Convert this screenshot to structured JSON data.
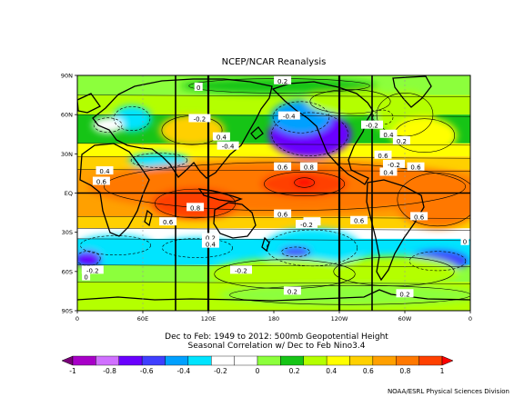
{
  "chart_data": {
    "type": "heatmap",
    "title": "NCEP/NCAR Reanalysis",
    "caption_line1": "Dec to Feb: 1949 to 2012: 500mb Geopotential Height",
    "caption_line2": "Seasonal Correlation w/ Dec to Feb Nino3.4",
    "credit": "NOAA/ESRL Physical Sciences Division",
    "y_ticks": [
      "90N",
      "60N",
      "30N",
      "EQ",
      "30S",
      "60S",
      "90S"
    ],
    "x_ticks": [
      "0",
      "60E",
      "120E",
      "180",
      "120W",
      "60W",
      "0"
    ],
    "colorbar_ticks": [
      "-1",
      "-0.8",
      "-0.6",
      "-0.4",
      "-0.2",
      "0",
      "0.2",
      "0.4",
      "0.6",
      "0.8",
      "1"
    ],
    "colorbar_colors": [
      "#7a007a",
      "#a800c8",
      "#d070ff",
      "#6a00ff",
      "#3f3fff",
      "#00a0ff",
      "#00e4ff",
      "#ffffff",
      "#ffffff",
      "#8cff3c",
      "#16c416",
      "#b4ff00",
      "#ffff00",
      "#ffd000",
      "#ffa000",
      "#ff7800",
      "#ff4000",
      "#ff0000"
    ],
    "contour_labels": [
      {
        "text": "0.2",
        "lon": 188,
        "lat": 86
      },
      {
        "text": "-0.2",
        "lon": 112,
        "lat": 57
      },
      {
        "text": "0.4",
        "lon": 132,
        "lat": 43
      },
      {
        "text": "-0.4",
        "lon": 138,
        "lat": 36
      },
      {
        "text": "-0.4",
        "lon": 194,
        "lat": 59
      },
      {
        "text": "-0.2",
        "lon": 270,
        "lat": 52
      },
      {
        "text": "0.4",
        "lon": 285,
        "lat": 45
      },
      {
        "text": "0.2",
        "lon": 297,
        "lat": 40
      },
      {
        "text": "0.6",
        "lon": 280,
        "lat": 29
      },
      {
        "text": "0.6",
        "lon": 310,
        "lat": 20
      },
      {
        "text": "0.4",
        "lon": 25,
        "lat": 17
      },
      {
        "text": "0.6",
        "lon": 22,
        "lat": 9
      },
      {
        "text": "0.6",
        "lon": 188,
        "lat": 20
      },
      {
        "text": "0.8",
        "lon": 212,
        "lat": 20
      },
      {
        "text": "-0.2",
        "lon": 290,
        "lat": 22
      },
      {
        "text": "0.4",
        "lon": 285,
        "lat": 16
      },
      {
        "text": "0.8",
        "lon": 108,
        "lat": -11
      },
      {
        "text": "0.6",
        "lon": 83,
        "lat": -22
      },
      {
        "text": "0.6",
        "lon": 188,
        "lat": -16
      },
      {
        "text": "0.2",
        "lon": 215,
        "lat": -22
      },
      {
        "text": "-0.2",
        "lon": 210,
        "lat": -24
      },
      {
        "text": "0.6",
        "lon": 258,
        "lat": -21
      },
      {
        "text": "0.6",
        "lon": 313,
        "lat": -18
      },
      {
        "text": "0.2",
        "lon": 122,
        "lat": -34
      },
      {
        "text": "0.4",
        "lon": 122,
        "lat": -39
      },
      {
        "text": "-0.2",
        "lon": 14,
        "lat": -59
      },
      {
        "text": "0",
        "lon": 8,
        "lat": -64
      },
      {
        "text": "0",
        "lon": 355,
        "lat": -37
      },
      {
        "text": "-0.2",
        "lon": 150,
        "lat": -59
      },
      {
        "text": "0.2",
        "lon": 197,
        "lat": -75
      },
      {
        "text": "0.2",
        "lon": 300,
        "lat": -77
      },
      {
        "text": "0",
        "lon": 111,
        "lat": 81
      }
    ],
    "fields": [
      {
        "value": -0.6,
        "lon": 213,
        "lat": 45,
        "rlon": 38,
        "rlat": 18
      },
      {
        "value": -0.4,
        "lon": 205,
        "lat": 58,
        "rlon": 28,
        "rlat": 13
      },
      {
        "value": -0.3,
        "lon": 50,
        "lat": 57,
        "rlon": 18,
        "rlat": 10
      },
      {
        "value": -0.2,
        "lon": 28,
        "lat": 52,
        "rlon": 14,
        "rlat": 6
      },
      {
        "value": -0.3,
        "lon": 280,
        "lat": 58,
        "rlon": 10,
        "rlat": 6
      },
      {
        "value": 0.5,
        "lon": 105,
        "lat": 48,
        "rlon": 30,
        "rlat": 12
      },
      {
        "value": 0.3,
        "lon": 300,
        "lat": 60,
        "rlon": 28,
        "rlat": 18
      },
      {
        "value": 0.4,
        "lon": 318,
        "lat": 44,
        "rlon": 30,
        "rlat": 14
      },
      {
        "value": 0.3,
        "lon": 250,
        "lat": 70,
        "rlon": 40,
        "rlat": 10
      },
      {
        "value": 0.2,
        "lon": 185,
        "lat": 82,
        "rlon": 90,
        "rlat": 6
      },
      {
        "value": -0.3,
        "lon": 75,
        "lat": 25,
        "rlon": 28,
        "rlat": 6
      },
      {
        "value": 0.7,
        "lon": 190,
        "lat": 5,
        "rlon": 180,
        "rlat": 20
      },
      {
        "value": 0.85,
        "lon": 208,
        "lat": 7,
        "rlon": 40,
        "rlat": 10
      },
      {
        "value": 0.95,
        "lon": 208,
        "lat": 8,
        "rlon": 10,
        "rlat": 4
      },
      {
        "value": 0.85,
        "lon": 108,
        "lat": -8,
        "rlon": 40,
        "rlat": 12
      },
      {
        "value": 0.7,
        "lon": 330,
        "lat": -5,
        "rlon": 40,
        "rlat": 22
      },
      {
        "value": -0.25,
        "lon": 215,
        "lat": -42,
        "rlon": 45,
        "rlat": 15
      },
      {
        "value": -0.5,
        "lon": 200,
        "lat": -45,
        "rlon": 14,
        "rlat": 4
      },
      {
        "value": -0.3,
        "lon": 35,
        "lat": -40,
        "rlon": 35,
        "rlat": 8
      },
      {
        "value": -0.6,
        "lon": 10,
        "lat": -50,
        "rlon": 12,
        "rlat": 6
      },
      {
        "value": -0.5,
        "lon": 330,
        "lat": -52,
        "rlon": 28,
        "rlat": 8
      },
      {
        "value": -0.25,
        "lon": 110,
        "lat": -42,
        "rlon": 35,
        "rlat": 8
      },
      {
        "value": 0.3,
        "lon": 190,
        "lat": -62,
        "rlon": 70,
        "rlat": 12
      },
      {
        "value": 0.3,
        "lon": 290,
        "lat": -60,
        "rlon": 60,
        "rlat": 12
      },
      {
        "value": 0.1,
        "lon": 250,
        "lat": -78,
        "rlon": 120,
        "rlat": 8
      }
    ]
  }
}
